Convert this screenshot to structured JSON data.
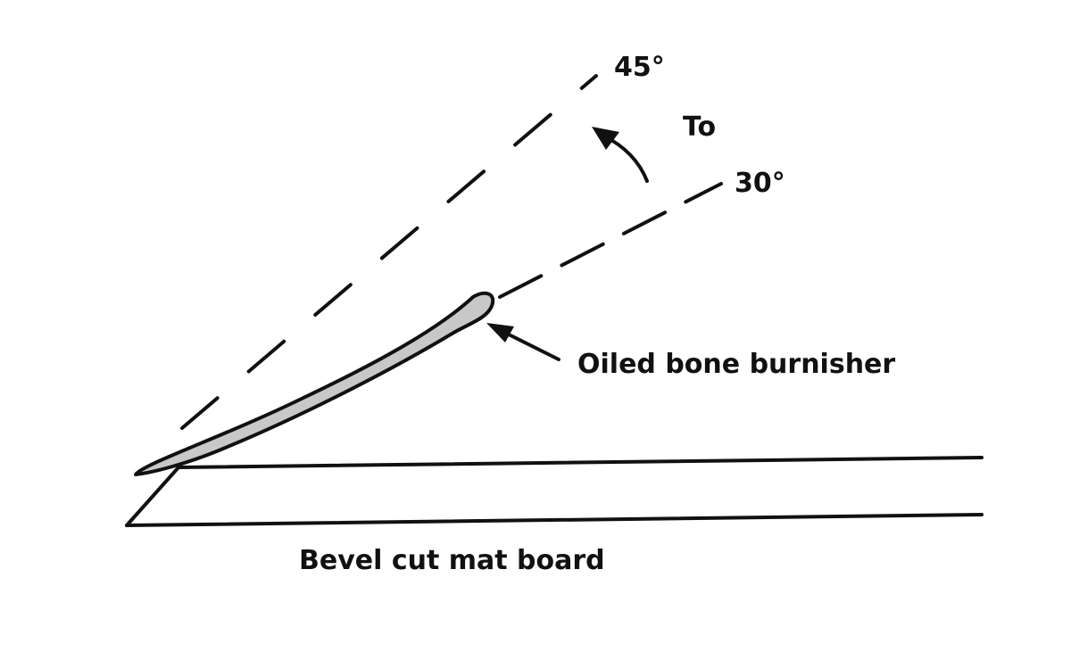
{
  "labels": {
    "angle_high": "45°",
    "connector": "To",
    "angle_low": "30°",
    "tool": "Oiled bone burnisher",
    "board": "Bevel cut mat board"
  },
  "colors": {
    "ink": "#111111",
    "burnisher_fill": "#c8c8c8",
    "background": "#ffffff"
  }
}
